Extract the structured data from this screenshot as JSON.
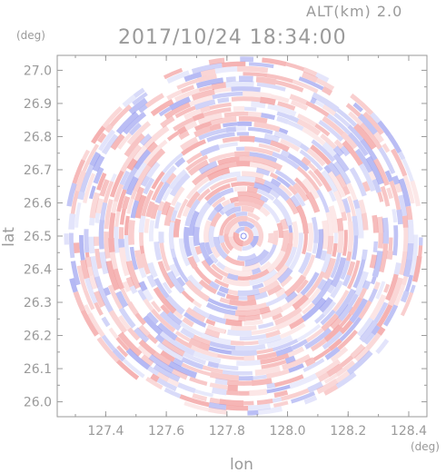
{
  "chart_data": {
    "type": "heatmap",
    "title": "2017/10/24 18:34:00",
    "subtitle": "ALT(km) 2.0",
    "xlabel": "lon",
    "ylabel": "lat",
    "x_unit": "(deg)",
    "y_unit": "(deg)",
    "xlim": [
      127.24,
      128.46
    ],
    "ylim": [
      25.955,
      27.045
    ],
    "x_ticks": [
      127.4,
      127.6,
      127.8,
      128.0,
      128.2,
      128.4
    ],
    "x_tick_labels": [
      "127.4",
      "127.6",
      "127.8",
      "128.0",
      "128.2",
      "128.4"
    ],
    "y_ticks": [
      26.0,
      26.1,
      26.2,
      26.3,
      26.4,
      26.5,
      26.6,
      26.7,
      26.8,
      26.9,
      27.0
    ],
    "y_tick_labels": [
      "26.0",
      "26.1",
      "26.2",
      "26.3",
      "26.4",
      "26.5",
      "26.6",
      "26.7",
      "26.8",
      "26.9",
      "27.0"
    ],
    "center": {
      "lon": 127.855,
      "lat": 26.5
    },
    "radius_deg": {
      "lon": 0.605,
      "lat": 0.5415
    },
    "colors": {
      "positive": "#f08a8a",
      "negative": "#8f95ee",
      "neutral": "#ffffff",
      "axis": "#9a9a9a"
    },
    "grid": false,
    "legend": "none"
  }
}
